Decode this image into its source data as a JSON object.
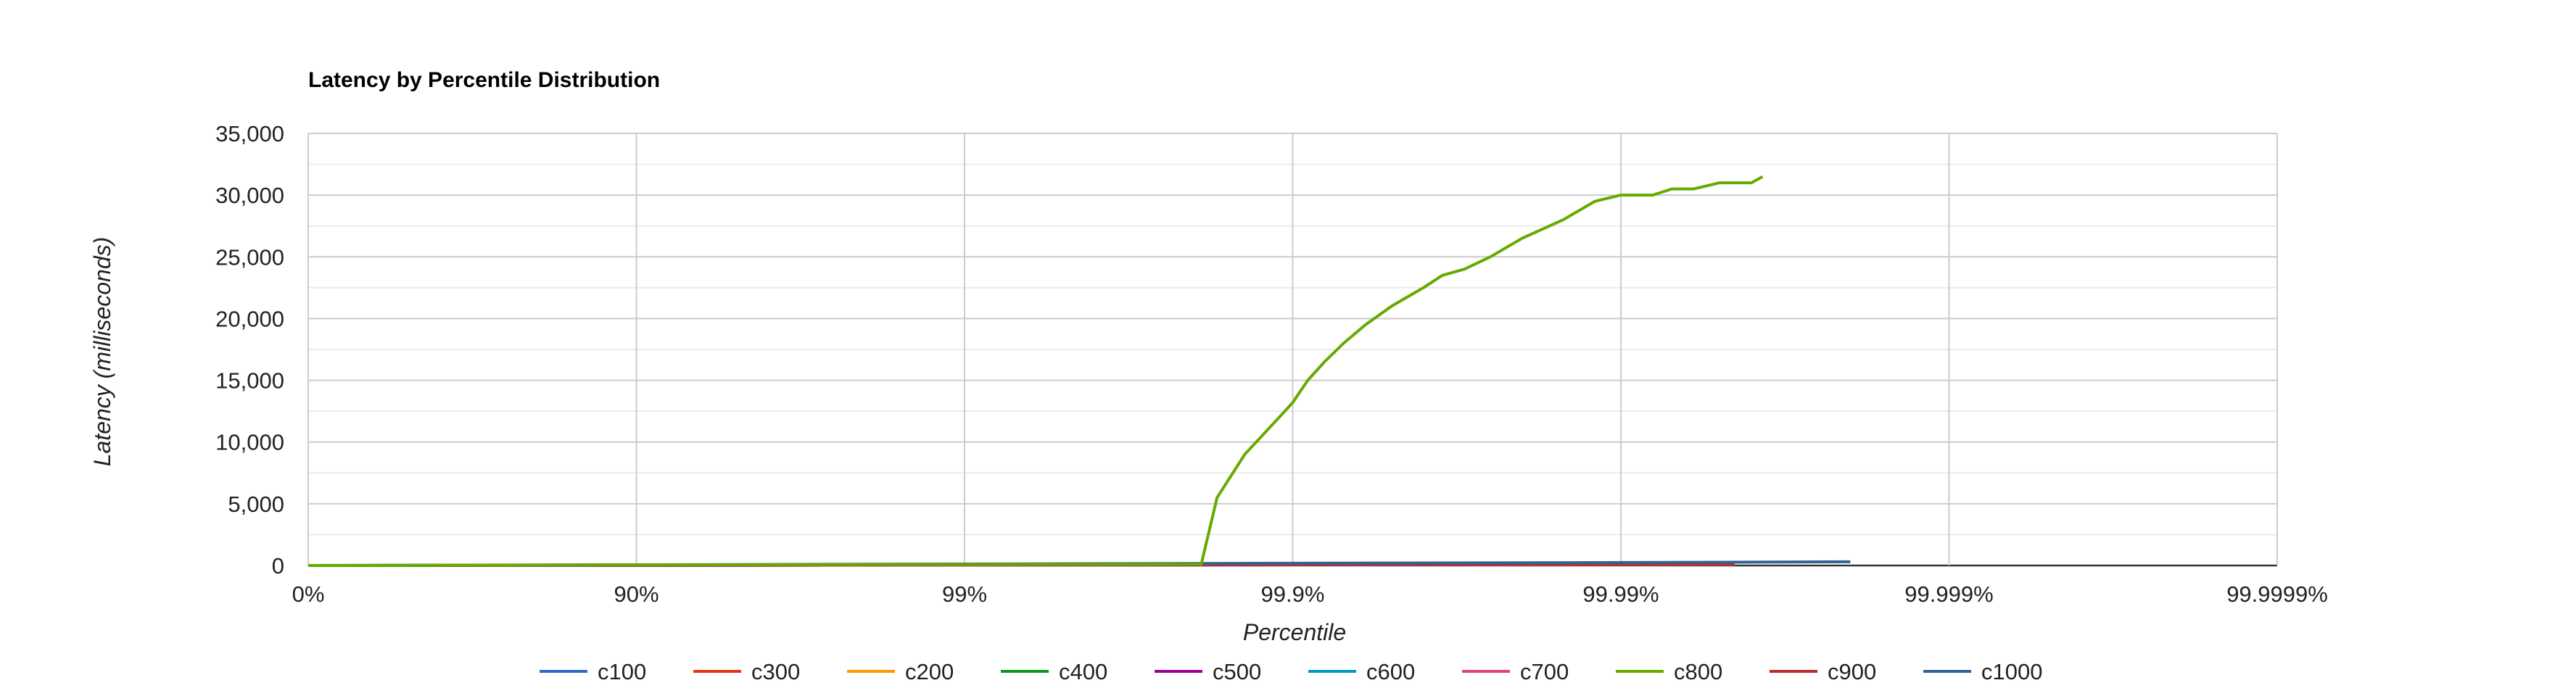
{
  "chart_data": {
    "type": "line",
    "title": "Latency by Percentile Distribution",
    "xlabel": "Percentile",
    "ylabel": "Latency (milliseconds)",
    "x_scale": "log-inverse-percentile",
    "x_ticks": [
      "0%",
      "90%",
      "99%",
      "99.9%",
      "99.99%",
      "99.999%",
      "99.9999%"
    ],
    "y_ticks": [
      "0",
      "5,000",
      "10,000",
      "15,000",
      "20,000",
      "25,000",
      "30,000",
      "35,000"
    ],
    "ylim": [
      0,
      35000
    ],
    "grid": true,
    "legend_position": "bottom",
    "series": [
      {
        "name": "c100",
        "color": "#3366cc",
        "points": [
          [
            0,
            0
          ],
          [
            90,
            40
          ],
          [
            99,
            70
          ],
          [
            99.9,
            110
          ],
          [
            99.99,
            150
          ],
          [
            99.9955,
            170
          ]
        ]
      },
      {
        "name": "c300",
        "color": "#dc3912",
        "points": [
          [
            0,
            0
          ],
          [
            90,
            20
          ],
          [
            99,
            40
          ],
          [
            99.9,
            60
          ],
          [
            99.99,
            80
          ],
          [
            99.9955,
            90
          ]
        ]
      },
      {
        "name": "c200",
        "color": "#ff9900",
        "points": [
          [
            0,
            0
          ],
          [
            90,
            20
          ],
          [
            99,
            35
          ],
          [
            99.9,
            55
          ],
          [
            99.99,
            70
          ],
          [
            99.9955,
            80
          ]
        ]
      },
      {
        "name": "c400",
        "color": "#109618",
        "points": [
          [
            0,
            0
          ],
          [
            90,
            20
          ],
          [
            99,
            40
          ],
          [
            99.9,
            60
          ],
          [
            99.99,
            80
          ],
          [
            99.9955,
            90
          ]
        ]
      },
      {
        "name": "c500",
        "color": "#990099",
        "points": [
          [
            0,
            0
          ],
          [
            90,
            20
          ],
          [
            99,
            40
          ],
          [
            99.9,
            60
          ],
          [
            99.99,
            80
          ],
          [
            99.9955,
            90
          ]
        ]
      },
      {
        "name": "c600",
        "color": "#0099c6",
        "points": [
          [
            0,
            0
          ],
          [
            90,
            20
          ],
          [
            99,
            40
          ],
          [
            99.9,
            60
          ],
          [
            99.99,
            80
          ],
          [
            99.9955,
            90
          ]
        ]
      },
      {
        "name": "c700",
        "color": "#dd4477",
        "points": [
          [
            0,
            0
          ],
          [
            90,
            20
          ],
          [
            99,
            40
          ],
          [
            99.9,
            60
          ],
          [
            99.99,
            80
          ],
          [
            99.9955,
            90
          ]
        ]
      },
      {
        "name": "c800",
        "color": "#66aa00",
        "points": [
          [
            0,
            0
          ],
          [
            90,
            50
          ],
          [
            99,
            80
          ],
          [
            99.81,
            100
          ],
          [
            99.83,
            5500
          ],
          [
            99.86,
            9000
          ],
          [
            99.89,
            12000
          ],
          [
            99.9,
            13200
          ],
          [
            99.91,
            15000
          ],
          [
            99.92,
            16500
          ],
          [
            99.93,
            18000
          ],
          [
            99.94,
            19500
          ],
          [
            99.95,
            21000
          ],
          [
            99.96,
            22500
          ],
          [
            99.965,
            23500
          ],
          [
            99.97,
            24000
          ],
          [
            99.975,
            25000
          ],
          [
            99.98,
            26500
          ],
          [
            99.985,
            28000
          ],
          [
            99.988,
            29500
          ],
          [
            99.99,
            30000
          ],
          [
            99.992,
            30000
          ],
          [
            99.993,
            30500
          ],
          [
            99.994,
            30500
          ],
          [
            99.995,
            31000
          ],
          [
            99.996,
            31000
          ],
          [
            99.9963,
            31500
          ]
        ]
      },
      {
        "name": "c900",
        "color": "#b82e2e",
        "points": [
          [
            0,
            0
          ],
          [
            90,
            20
          ],
          [
            99,
            40
          ],
          [
            99.9,
            60
          ],
          [
            99.99,
            80
          ],
          [
            99.9955,
            90
          ]
        ]
      },
      {
        "name": "c1000",
        "color": "#316395",
        "points": [
          [
            0,
            0
          ],
          [
            90,
            60
          ],
          [
            99,
            120
          ],
          [
            99.9,
            180
          ],
          [
            99.99,
            240
          ],
          [
            99.998,
            300
          ]
        ]
      }
    ]
  }
}
